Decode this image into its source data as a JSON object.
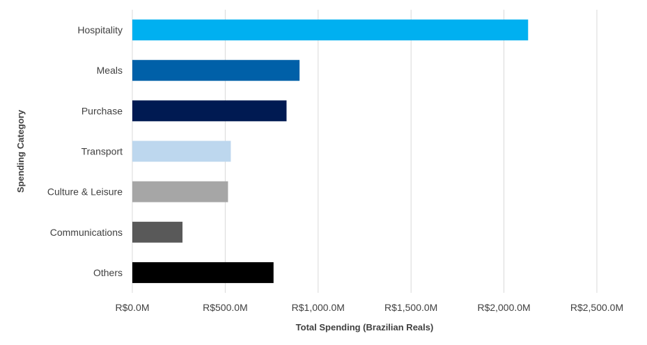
{
  "chart_data": {
    "type": "bar",
    "orientation": "horizontal",
    "title": "",
    "xlabel": "Total Spending (Brazilian Reals)",
    "ylabel": "Spending Category",
    "xlim": [
      0,
      2500
    ],
    "x_ticks": [
      0,
      500,
      1000,
      1500,
      2000,
      2500
    ],
    "x_tick_labels": [
      "R$0.0M",
      "R$500.0M",
      "R$1,000.0M",
      "R$1,500.0M",
      "R$2,000.0M",
      "R$2,500.0M"
    ],
    "grid": "vertical",
    "legend": "none",
    "categories": [
      "Hospitality",
      "Meals",
      "Purchase",
      "Transport",
      "Culture & Leisure",
      "Communications",
      "Others"
    ],
    "values": [
      2130,
      900,
      830,
      530,
      515,
      270,
      760
    ],
    "colors": [
      "#00B0F0",
      "#0060A8",
      "#001A52",
      "#BDD7EE",
      "#A6A6A6",
      "#595959",
      "#000000"
    ]
  }
}
